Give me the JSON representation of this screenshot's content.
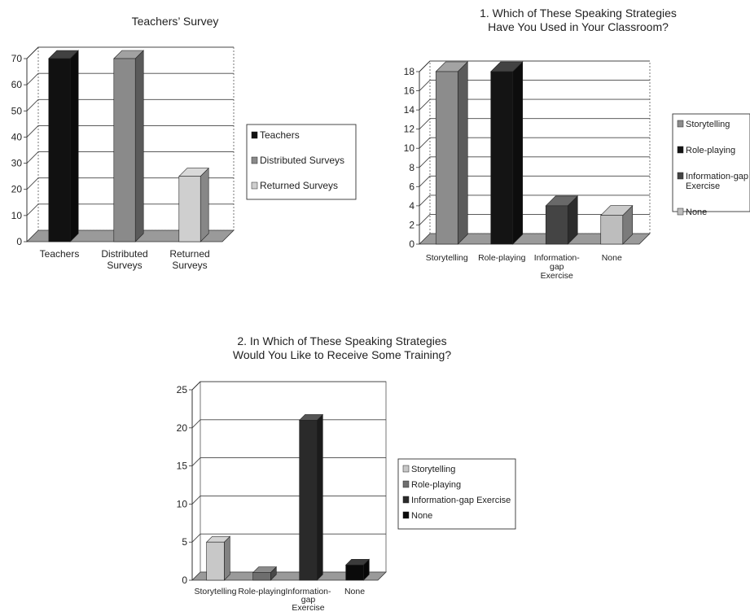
{
  "chart_data": [
    {
      "type": "bar",
      "title": "Teachers’ Survey",
      "categories": [
        "Teachers",
        "Distributed Surveys",
        "Returned Surveys"
      ],
      "category_labels": [
        [
          "Teachers"
        ],
        [
          "Distributed",
          "Surveys"
        ],
        [
          "Returned",
          "Surveys"
        ]
      ],
      "values": [
        70,
        70,
        25
      ],
      "legend": [
        "Teachers",
        "Distributed Surveys",
        "Returned Surveys"
      ],
      "colors": [
        "#111111",
        "#8a8a8a",
        "#cfcfcf"
      ],
      "ylim": [
        0,
        70
      ],
      "yticks": [
        0,
        10,
        20,
        30,
        40,
        50,
        60,
        70
      ],
      "grid": true,
      "legend_position": "right"
    },
    {
      "type": "bar",
      "title": [
        "1. Which of These Speaking Strategies",
        "Have You Used in Your Classroom?"
      ],
      "categories": [
        "Storytelling",
        "Role-playing",
        "Information-gap Exercise",
        "None"
      ],
      "category_labels": [
        [
          "Storytelling"
        ],
        [
          "Role-playing"
        ],
        [
          "Information-",
          "gap",
          "Exercise"
        ],
        [
          "None"
        ]
      ],
      "values": [
        18,
        18,
        4,
        3
      ],
      "legend": [
        "Storytelling",
        "Role-playing",
        "Information-gap Exercise",
        "None"
      ],
      "legend_labels": [
        [
          "Storytelling"
        ],
        [
          "Role-playing"
        ],
        [
          "Information-gap",
          "Exercise"
        ],
        [
          "None"
        ]
      ],
      "colors": [
        "#8c8c8c",
        "#141414",
        "#444444",
        "#bdbdbd"
      ],
      "ylim": [
        0,
        18
      ],
      "yticks": [
        0,
        2,
        4,
        6,
        8,
        10,
        12,
        14,
        16,
        18
      ],
      "grid": true,
      "legend_position": "right"
    },
    {
      "type": "bar",
      "title": [
        "2. In Which of These Speaking Strategies",
        "Would You Like to Receive Some Training?"
      ],
      "categories": [
        "Storytelling",
        "Role-playing",
        "Information-gap Exercise",
        "None"
      ],
      "category_labels": [
        [
          "Storytelling"
        ],
        [
          "Role-playing"
        ],
        [
          "Information-",
          "gap",
          "Exercise"
        ],
        [
          "None"
        ]
      ],
      "values": [
        5,
        1,
        21,
        2
      ],
      "legend": [
        "Storytelling",
        "Role-playing",
        "Information-gap Exercise",
        "None"
      ],
      "colors": [
        "#c8c8c8",
        "#6e6e6e",
        "#2a2a2a",
        "#0a0a0a"
      ],
      "ylim": [
        0,
        25
      ],
      "yticks": [
        0,
        5,
        10,
        15,
        20,
        25
      ],
      "grid": true,
      "legend_position": "right"
    }
  ]
}
